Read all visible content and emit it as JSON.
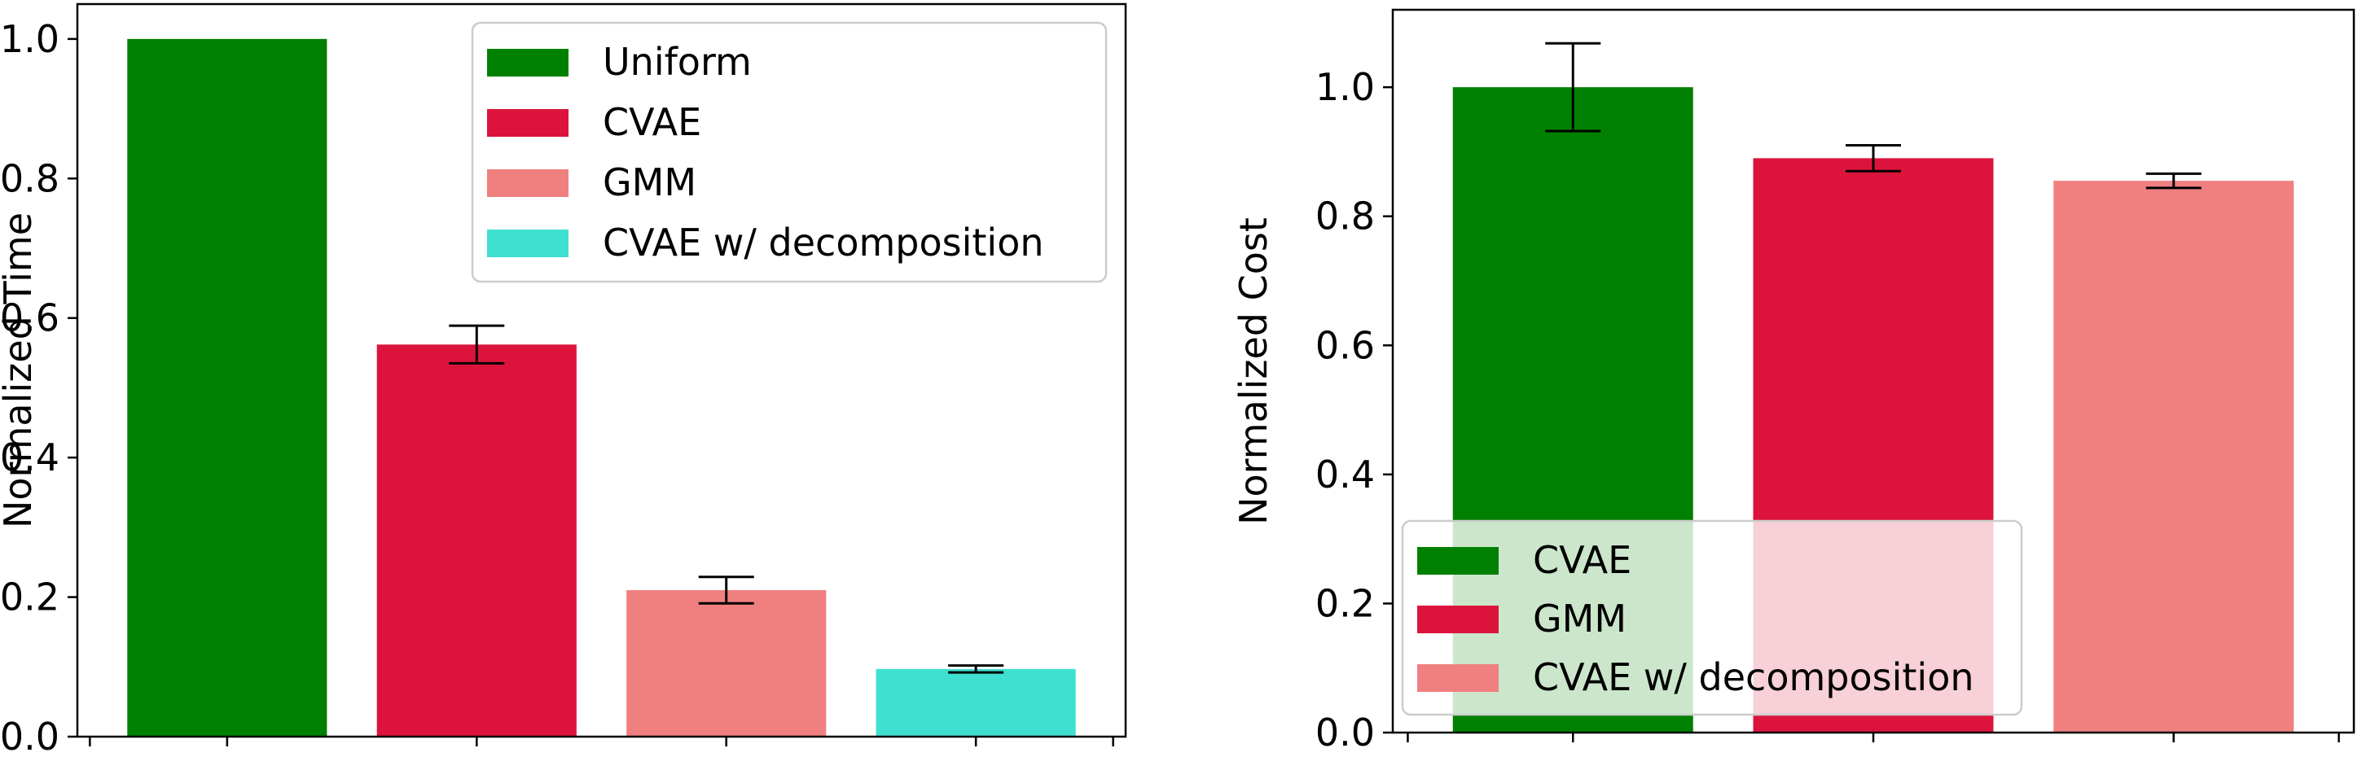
{
  "chart_data": [
    {
      "type": "bar",
      "categories": [
        "Uniform",
        "CVAE",
        "GMM",
        "CVAE w/ decomposition"
      ],
      "values": [
        1.0,
        0.562,
        0.21,
        0.097
      ],
      "errors": [
        0.0,
        0.027,
        0.019,
        0.005
      ],
      "colors": [
        "#008000",
        "#dc143c",
        "#f08080",
        "#40e0d0"
      ],
      "xlabel": "",
      "ylabel": "Normalized Time",
      "ylim": [
        0,
        1.05
      ],
      "yticks": [
        0.0,
        0.2,
        0.4,
        0.6,
        0.8,
        1.0
      ],
      "ytick_labels": [
        "0.0",
        "0.2",
        "0.4",
        "0.6",
        "0.8",
        "1.0"
      ],
      "grid": false,
      "legend": {
        "placement": "top-right",
        "entries": [
          "Uniform",
          "CVAE",
          "GMM",
          "CVAE w/ decomposition"
        ]
      }
    },
    {
      "type": "bar",
      "categories": [
        "CVAE",
        "GMM",
        "CVAE w/ decomposition"
      ],
      "values": [
        1.0,
        0.89,
        0.855
      ],
      "errors": [
        0.068,
        0.02,
        0.011
      ],
      "colors": [
        "#008000",
        "#dc143c",
        "#f08080"
      ],
      "xlabel": "",
      "ylabel": "Normalized Cost",
      "ylim": [
        0,
        1.12
      ],
      "yticks": [
        0.0,
        0.2,
        0.4,
        0.6,
        0.8,
        1.0
      ],
      "ytick_labels": [
        "0.0",
        "0.2",
        "0.4",
        "0.6",
        "0.8",
        "1.0"
      ],
      "grid": false,
      "legend": {
        "placement": "bottom-left",
        "entries": [
          "CVAE",
          "GMM",
          "CVAE w/ decomposition"
        ]
      }
    }
  ]
}
